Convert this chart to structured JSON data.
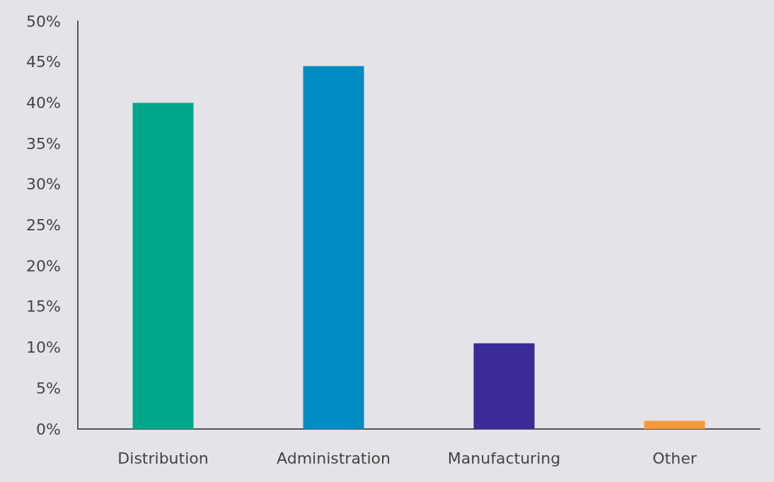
{
  "chart_data": {
    "type": "bar",
    "categories": [
      "Distribution",
      "Administration",
      "Manufacturing",
      "Other"
    ],
    "values": [
      40,
      44.5,
      10.5,
      1
    ],
    "colors": [
      "#00a88a",
      "#008cc3",
      "#3a2b96",
      "#f7993a"
    ],
    "ylim": [
      0,
      50
    ],
    "yticks": [
      {
        "value": 0,
        "label": "0%"
      },
      {
        "value": 5,
        "label": "5%"
      },
      {
        "value": 10,
        "label": "10%"
      },
      {
        "value": 15,
        "label": "15%"
      },
      {
        "value": 20,
        "label": "20%"
      },
      {
        "value": 25,
        "label": "25%"
      },
      {
        "value": 30,
        "label": "30%"
      },
      {
        "value": 35,
        "label": "35%"
      },
      {
        "value": 40,
        "label": "40%"
      },
      {
        "value": 45,
        "label": "45%"
      },
      {
        "value": 50,
        "label": "50%"
      }
    ],
    "grid": false
  }
}
